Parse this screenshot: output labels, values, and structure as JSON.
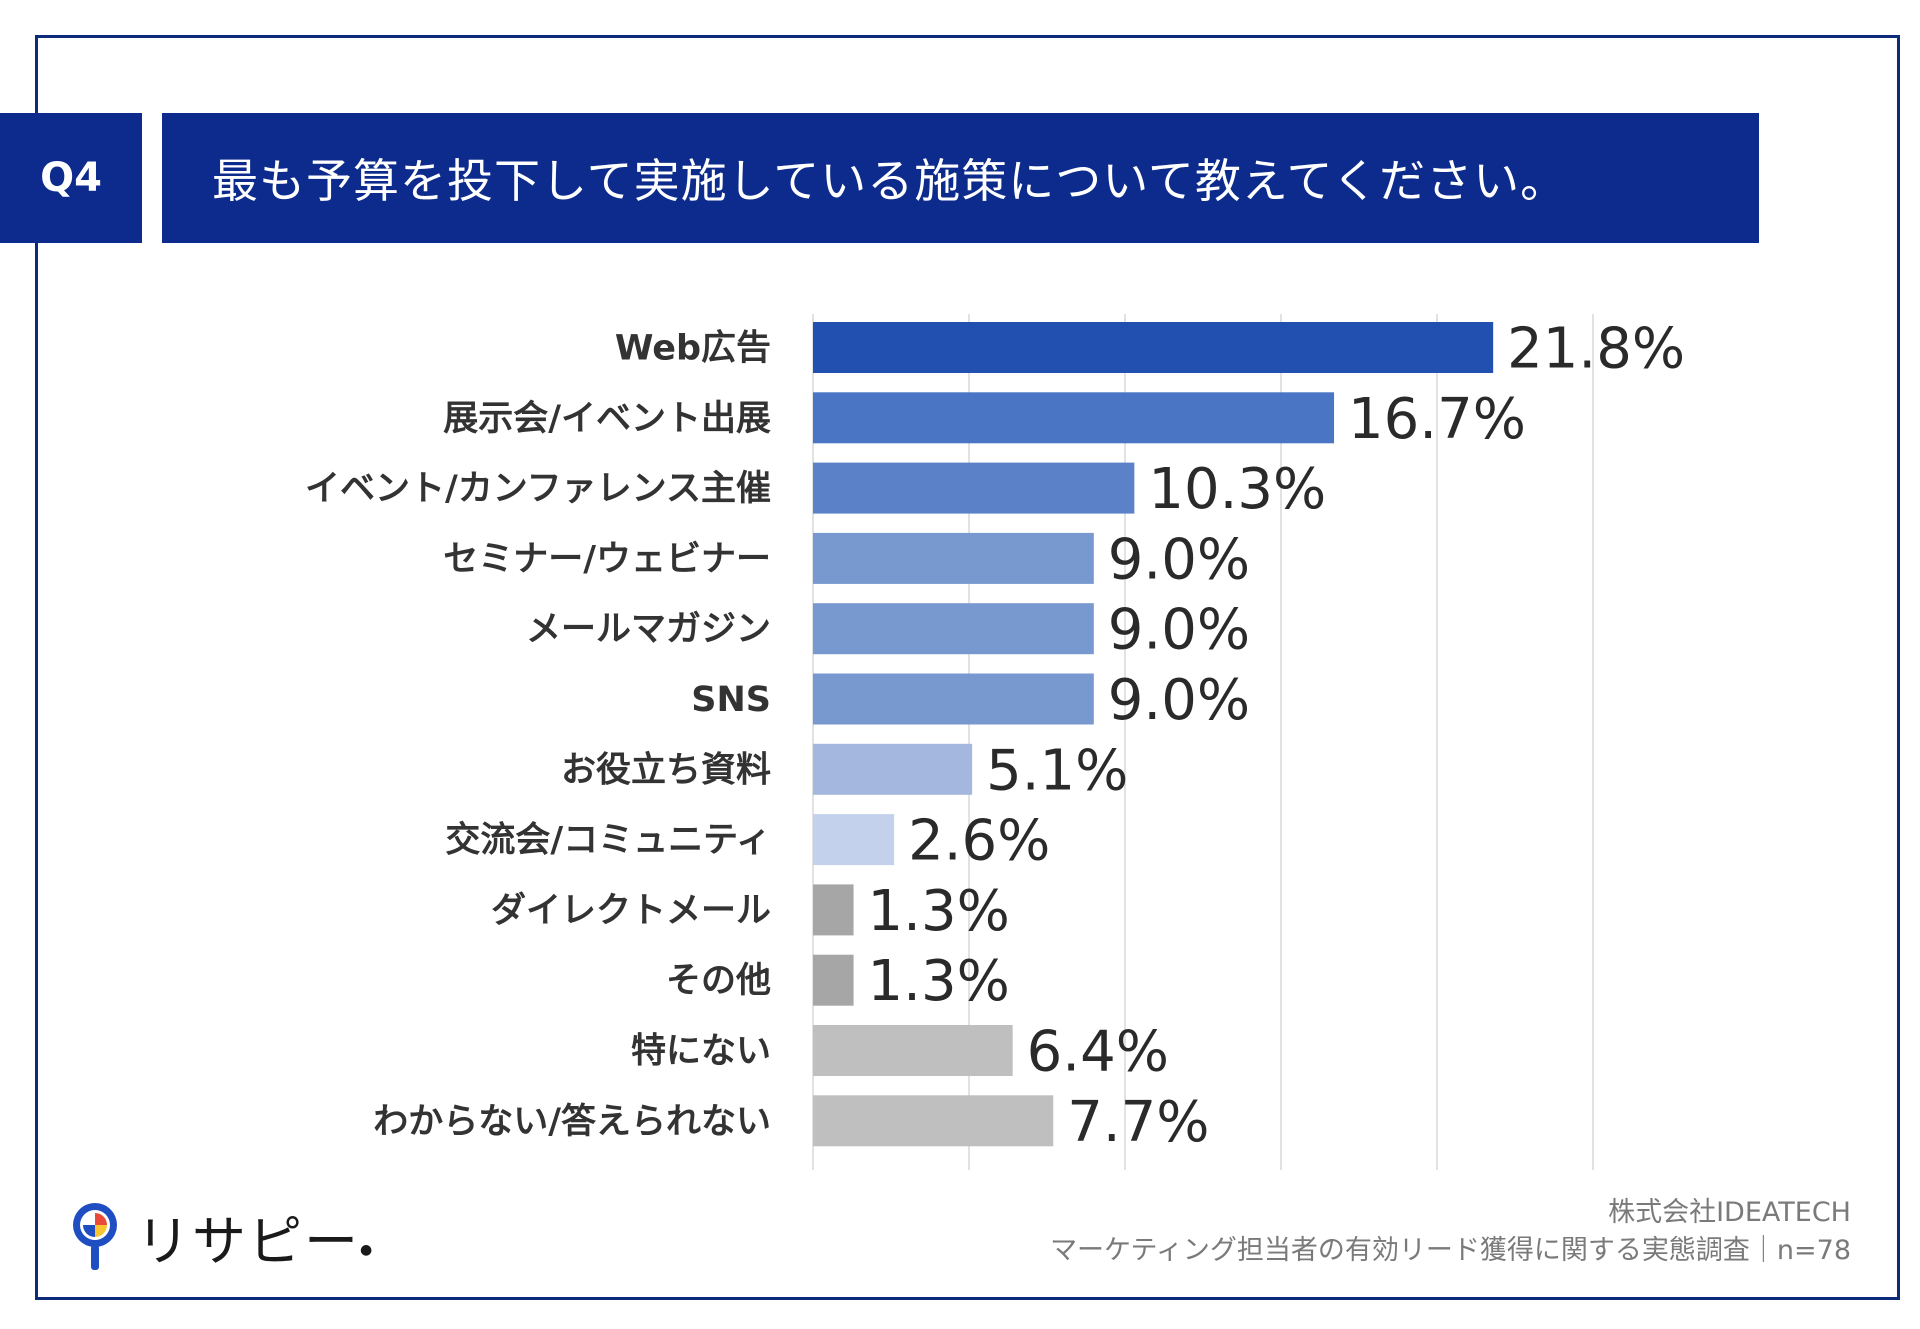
{
  "question": {
    "number": "Q4",
    "text": "最も予算を投下して実施している施策について教えてください。"
  },
  "colors": {
    "header_bg": "#0c2b8c",
    "frame": "#0c2b7a",
    "bar_colors": [
      "#2150b0",
      "#4a74c4",
      "#5b82c8",
      "#7898d0",
      "#7898d0",
      "#7898d0",
      "#a3b7df",
      "#c3d1ec",
      "#a6a6a6",
      "#a6a6a6",
      "#bfbfbf",
      "#bfbfbf"
    ]
  },
  "chart_data": {
    "type": "bar",
    "orientation": "horizontal",
    "categories": [
      "Web広告",
      "展示会/イベント出展",
      "イベント/カンファレンス主催",
      "セミナー/ウェビナー",
      "メールマガジン",
      "SNS",
      "お役立ち資料",
      "交流会/コミュニティ",
      "ダイレクトメール",
      "その他",
      "特にない",
      "わからない/答えられない"
    ],
    "values": [
      21.8,
      16.7,
      10.3,
      9.0,
      9.0,
      9.0,
      5.1,
      2.6,
      1.3,
      1.3,
      6.4,
      7.7
    ],
    "value_labels": [
      "21.8%",
      "16.7%",
      "10.3%",
      "9.0%",
      "9.0%",
      "9.0%",
      "5.1%",
      "2.6%",
      "1.3%",
      "1.3%",
      "6.4%",
      "7.7%"
    ],
    "xlim": [
      0,
      25
    ],
    "grid": true
  },
  "logo": {
    "name": "リサピー",
    "icon": "pin-logo-icon"
  },
  "credit": {
    "company": "株式会社IDEATECH",
    "survey": "マーケティング担当者の有効リード獲得に関する実態調査｜n=78"
  }
}
